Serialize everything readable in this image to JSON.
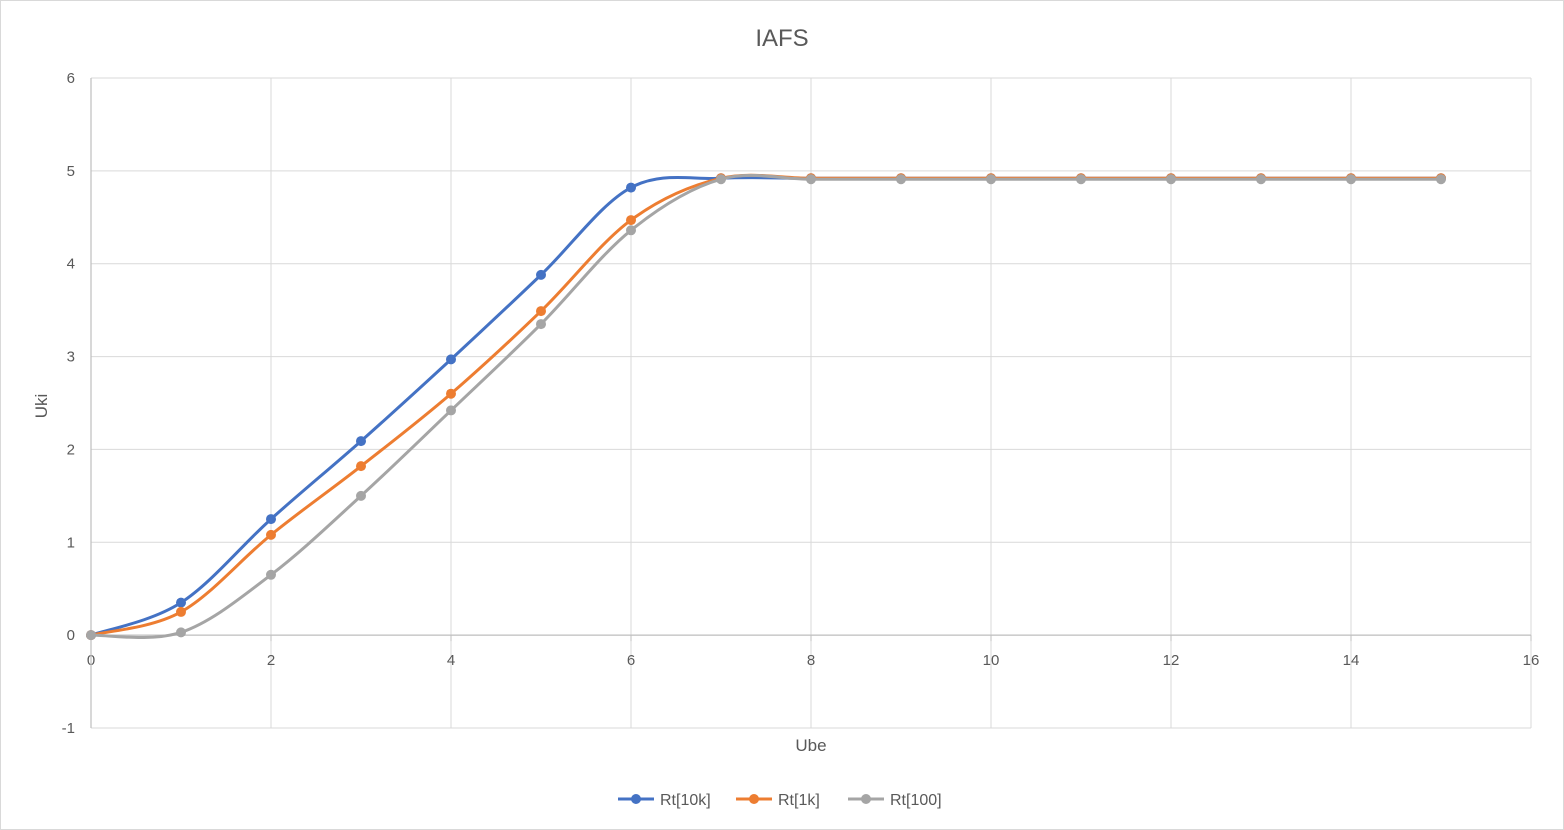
{
  "chart_data": {
    "type": "scatter",
    "title": "IAFS",
    "xlabel": "Ube",
    "ylabel": "Uki",
    "xlim": [
      0,
      16
    ],
    "ylim": [
      -1,
      6
    ],
    "x_ticks": [
      "0",
      "2",
      "4",
      "6",
      "8",
      "10",
      "12",
      "14",
      "16"
    ],
    "y_ticks": [
      "-1",
      "0",
      "1",
      "2",
      "3",
      "4",
      "5",
      "6"
    ],
    "grid": true,
    "smooth_lines": true,
    "legend": "bottom",
    "x": [
      0,
      1,
      2,
      3,
      4,
      5,
      6,
      7,
      8,
      9,
      10,
      11,
      12,
      13,
      14,
      15
    ],
    "series": [
      {
        "name": "Rt[10k]",
        "color": "#4472c4",
        "values": [
          0,
          0.35,
          1.25,
          2.09,
          2.97,
          3.88,
          4.82,
          4.92,
          4.92,
          4.92,
          4.92,
          4.92,
          4.92,
          4.92,
          4.92,
          4.92
        ]
      },
      {
        "name": "Rt[1k]",
        "color": "#ed7d31",
        "values": [
          0,
          0.25,
          1.08,
          1.82,
          2.6,
          3.49,
          4.47,
          4.92,
          4.92,
          4.92,
          4.92,
          4.92,
          4.92,
          4.92,
          4.92,
          4.92
        ]
      },
      {
        "name": "Rt[100]",
        "color": "#a5a5a5",
        "values": [
          0,
          0.03,
          0.65,
          1.5,
          2.42,
          3.35,
          4.36,
          4.91,
          4.91,
          4.91,
          4.91,
          4.91,
          4.91,
          4.91,
          4.91,
          4.91
        ]
      }
    ]
  }
}
